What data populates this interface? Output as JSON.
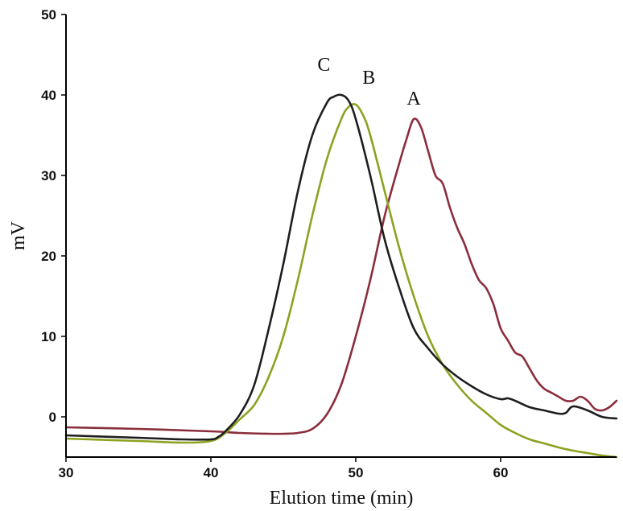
{
  "chart_data": {
    "type": "line",
    "title": "",
    "xlabel": "Elution time (min)",
    "ylabel": "mV",
    "xlim": [
      30,
      68
    ],
    "ylim": [
      -5,
      50
    ],
    "xticks": [
      30,
      40,
      50,
      60
    ],
    "yticks": [
      0,
      10,
      20,
      30,
      40,
      50
    ],
    "grid": false,
    "legend": "none",
    "series": [
      {
        "name": "A",
        "color": "#8B2E3C",
        "x": [
          30,
          35,
          40,
          42,
          44,
          45,
          46,
          47,
          48,
          49,
          50,
          51,
          52,
          53,
          53.5,
          54,
          54.5,
          55,
          55.5,
          56,
          56.5,
          57,
          57.5,
          58,
          58.5,
          59,
          59.5,
          60,
          60.5,
          61,
          61.5,
          62,
          62.5,
          63,
          63.5,
          64,
          64.5,
          65,
          65.5,
          66,
          66.5,
          67,
          67.5,
          68
        ],
        "y": [
          -1.3,
          -1.5,
          -1.8,
          -2.0,
          -2.1,
          -2.1,
          -2.0,
          -1.5,
          0.3,
          4.0,
          10.0,
          17.0,
          25.0,
          31.5,
          34.5,
          37.0,
          36.0,
          33.0,
          30.0,
          29.0,
          26.0,
          23.5,
          21.5,
          19.0,
          17.0,
          16.0,
          14.0,
          11.0,
          9.5,
          8.0,
          7.5,
          6.0,
          4.5,
          3.5,
          3.0,
          2.5,
          2.0,
          2.0,
          2.5,
          2.0,
          1.0,
          0.8,
          1.2,
          2.0
        ]
      },
      {
        "name": "B",
        "color": "#8DA221",
        "x": [
          30,
          35,
          38,
          40,
          41,
          42,
          43,
          44,
          45,
          46,
          47,
          48,
          49,
          49.5,
          50,
          50.5,
          51,
          52,
          53,
          54,
          55,
          56,
          57,
          58,
          59,
          60,
          61,
          62,
          63,
          64,
          65,
          66,
          67,
          68
        ],
        "y": [
          -2.7,
          -3.0,
          -3.2,
          -3.0,
          -2.0,
          -0.3,
          1.5,
          5.0,
          10.0,
          17.0,
          25.0,
          32.0,
          37.0,
          38.5,
          38.8,
          37.5,
          35.0,
          28.0,
          21.0,
          15.0,
          10.0,
          6.5,
          4.0,
          2.0,
          0.5,
          -1.0,
          -2.0,
          -2.8,
          -3.3,
          -3.8,
          -4.2,
          -4.5,
          -4.8,
          -5.0
        ]
      },
      {
        "name": "C",
        "color": "#1E1E1E",
        "x": [
          30,
          35,
          38,
          40,
          40.5,
          41,
          42,
          43,
          44,
          45,
          46,
          47,
          48,
          48.5,
          49,
          49.5,
          50,
          51,
          52,
          53,
          54,
          55,
          56,
          57,
          58,
          59,
          60,
          60.5,
          61,
          62,
          63,
          64,
          64.5,
          65,
          66,
          67,
          68
        ],
        "y": [
          -2.3,
          -2.6,
          -2.8,
          -2.8,
          -2.5,
          -1.8,
          0.3,
          4.0,
          11.0,
          19.0,
          28.0,
          35.0,
          39.0,
          39.8,
          40.0,
          39.3,
          37.0,
          30.0,
          22.0,
          16.0,
          11.0,
          8.5,
          6.5,
          5.0,
          3.8,
          2.8,
          2.2,
          2.3,
          2.0,
          1.2,
          0.8,
          0.4,
          0.5,
          1.3,
          0.8,
          0.0,
          -0.2
        ]
      }
    ]
  }
}
